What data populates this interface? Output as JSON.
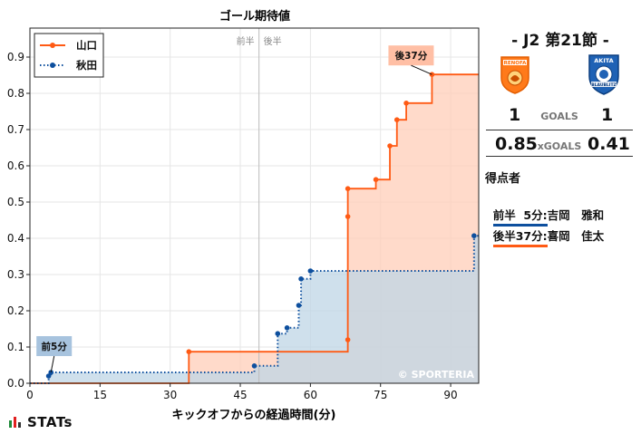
{
  "chart_data": {
    "type": "line",
    "title": "ゴール期待値",
    "xlabel": "キックオフからの経過時間(分)",
    "ylabel": "",
    "xlim": [
      0,
      96
    ],
    "ylim": [
      0,
      0.98
    ],
    "xticks": [
      0,
      15,
      30,
      45,
      60,
      75,
      90
    ],
    "yticks": [
      0,
      0.1,
      0.2,
      0.3,
      0.4,
      0.5,
      0.6,
      0.7,
      0.8,
      0.9
    ],
    "grid": true,
    "legend_position": "top-left",
    "halftime_minute": 49,
    "halftime_labels": [
      "前半",
      "後半"
    ],
    "watermark": "© SPORTERIA",
    "series": [
      {
        "name": "山口",
        "color": "#ff5a14",
        "fill": "#ffcdb8",
        "style": "solid",
        "points": [
          [
            34,
            0.087
          ],
          [
            68,
            0.12
          ],
          [
            68,
            0.46
          ],
          [
            68,
            0.537
          ],
          [
            74,
            0.562
          ],
          [
            77,
            0.655
          ],
          [
            78.5,
            0.727
          ],
          [
            80.5,
            0.773
          ],
          [
            86,
            0.852
          ],
          [
            96,
            0.852
          ]
        ]
      },
      {
        "name": "秋田",
        "color": "#0d4f9e",
        "fill": "#bfd5e6",
        "style": "dotted",
        "points": [
          [
            4,
            0.02
          ],
          [
            4.5,
            0.03
          ],
          [
            48,
            0.048
          ],
          [
            53,
            0.137
          ],
          [
            55,
            0.153
          ],
          [
            57.5,
            0.215
          ],
          [
            58,
            0.288
          ],
          [
            60,
            0.31
          ],
          [
            95,
            0.407
          ],
          [
            96,
            0.407
          ]
        ]
      }
    ],
    "annotations": [
      {
        "label": "前5分",
        "x": 4.5,
        "y": 0.03,
        "color": "#a7c3de"
      },
      {
        "label": "後37分",
        "x": 86,
        "y": 0.852,
        "color": "#ffbfa5"
      }
    ]
  },
  "match": {
    "title": "- J2 第21節 -",
    "home_logo_text": "RENOFA",
    "away_logo_text": "AKITA",
    "away_logo_subtext": "BLAUBLITZ",
    "home_goals": "1",
    "away_goals": "1",
    "goals_label": "GOALS",
    "home_xg": "0.85",
    "away_xg": "0.41",
    "xg_label": "xGOALS",
    "scorers_title": "得点者",
    "scorers": [
      {
        "time": "前半  5分:",
        "name": "吉岡　雅和",
        "color": "#0d4f9e"
      },
      {
        "time": "後半37分:",
        "name": "喜岡　佳太",
        "color": "#ff5a14"
      }
    ]
  },
  "brand": "STATs"
}
